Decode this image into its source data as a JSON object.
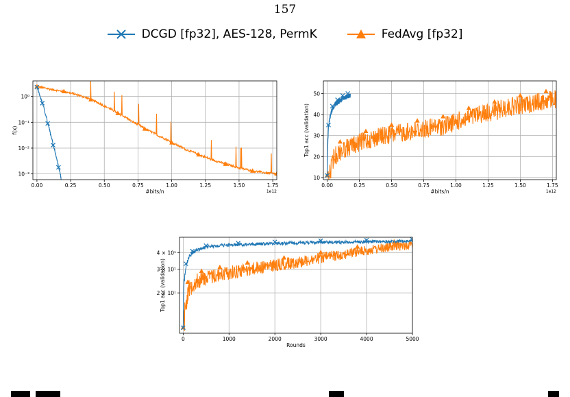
{
  "page": {
    "number": "157"
  },
  "legend": {
    "items": [
      {
        "label": "DCGD [fp32], AES-128, PermK",
        "color": "#1f77b4",
        "marker": "x"
      },
      {
        "label": "FedAvg [fp32]",
        "color": "#ff7f0e",
        "marker": "triangle"
      }
    ]
  },
  "chart_data": [
    {
      "id": "loss",
      "type": "line",
      "xlabel": "#bits/n",
      "ylabel": "f(x)",
      "x_multiplier": "1e12",
      "yscale": "log",
      "xlim": [
        -0.03,
        1.78
      ],
      "ylim": [
        0.0006,
        4.0
      ],
      "xticks": [
        0.0,
        0.25,
        0.5,
        0.75,
        1.0,
        1.25,
        1.5,
        1.75
      ],
      "xtick_labels": [
        "0.00",
        "0.25",
        "0.50",
        "0.75",
        "1.00",
        "1.25",
        "1.50",
        "1.75"
      ],
      "yticks": [
        0.001,
        0.01,
        0.1,
        1
      ],
      "ytick_labels": [
        "10⁻³",
        "10⁻²",
        "10⁻¹",
        "10⁰"
      ],
      "grid": true,
      "series": [
        {
          "name": "DCGD [fp32], AES-128, PermK",
          "color": "#1f77b4",
          "marker": "x",
          "x": [
            0.0,
            0.02,
            0.04,
            0.06,
            0.08,
            0.1,
            0.12,
            0.14,
            0.16,
            0.18
          ],
          "y": [
            2.3,
            1.1,
            0.55,
            0.22,
            0.09,
            0.035,
            0.013,
            0.005,
            0.0018,
            0.0006
          ]
        },
        {
          "name": "FedAvg [fp32]",
          "color": "#ff7f0e",
          "marker": "triangle",
          "x": [
            0.0,
            0.1,
            0.2,
            0.3,
            0.4,
            0.5,
            0.6,
            0.7,
            0.8,
            0.9,
            1.0,
            1.1,
            1.2,
            1.3,
            1.4,
            1.5,
            1.6,
            1.7,
            1.78
          ],
          "y": [
            2.4,
            1.9,
            1.55,
            1.15,
            0.75,
            0.42,
            0.22,
            0.11,
            0.055,
            0.03,
            0.016,
            0.009,
            0.0055,
            0.0035,
            0.0024,
            0.0017,
            0.0013,
            0.0011,
            0.001
          ]
        }
      ]
    },
    {
      "id": "acc-bits",
      "type": "line",
      "xlabel": "#bits/n",
      "ylabel": "Top1 acc (validation)",
      "x_multiplier": "1e12",
      "xlim": [
        -0.03,
        1.78
      ],
      "ylim": [
        9,
        56
      ],
      "xticks": [
        0.0,
        0.25,
        0.5,
        0.75,
        1.0,
        1.25,
        1.5,
        1.75
      ],
      "xtick_labels": [
        "0.00",
        "0.25",
        "0.50",
        "0.75",
        "1.00",
        "1.25",
        "1.50",
        "1.75"
      ],
      "yticks": [
        10,
        20,
        30,
        40,
        50
      ],
      "ytick_labels": [
        "10",
        "20",
        "30",
        "40",
        "50"
      ],
      "grid": true,
      "series": [
        {
          "name": "DCGD [fp32], AES-128, PermK",
          "color": "#1f77b4",
          "marker": "x",
          "x": [
            0.0,
            0.005,
            0.01,
            0.02,
            0.04,
            0.06,
            0.08,
            0.1,
            0.12,
            0.14,
            0.16,
            0.18
          ],
          "y": [
            11,
            28,
            35,
            40,
            44,
            46,
            47,
            48,
            49,
            49.5,
            50,
            50.5
          ]
        },
        {
          "name": "FedAvg [fp32]",
          "color": "#ff7f0e",
          "marker": "triangle",
          "x": [
            0.0,
            0.05,
            0.1,
            0.2,
            0.3,
            0.4,
            0.5,
            0.6,
            0.7,
            0.8,
            0.9,
            1.0,
            1.1,
            1.2,
            1.3,
            1.4,
            1.5,
            1.6,
            1.7,
            1.78
          ],
          "y": [
            11,
            24,
            27,
            30,
            32,
            34,
            35,
            36,
            37,
            38,
            39,
            41,
            43,
            45,
            46,
            48,
            49,
            50,
            51,
            52
          ]
        }
      ]
    },
    {
      "id": "acc-rounds",
      "type": "line",
      "xlabel": "Rounds",
      "ylabel": "Top1 acc (validation)",
      "yscale": "log",
      "xlim": [
        -80,
        5000
      ],
      "ylim": [
        10,
        52
      ],
      "xticks": [
        0,
        1000,
        2000,
        3000,
        4000,
        5000
      ],
      "xtick_labels": [
        "0",
        "1000",
        "2000",
        "3000",
        "4000",
        "5000"
      ],
      "yticks": [
        20,
        30,
        40
      ],
      "ytick_labels": [
        "2 × 10¹",
        "3 × 10¹",
        "4 × 10¹"
      ],
      "grid": true,
      "series": [
        {
          "name": "DCGD [fp32], AES-128, PermK",
          "color": "#1f77b4",
          "marker": "x",
          "x": [
            0,
            20,
            60,
            120,
            200,
            300,
            500,
            800,
            1200,
            1600,
            2000,
            2500,
            3000,
            3500,
            4000,
            4500,
            5000
          ],
          "y": [
            11,
            25,
            33,
            38,
            41,
            43,
            45,
            46.5,
            47,
            47.5,
            48,
            48.5,
            49,
            49,
            49.5,
            49.5,
            50
          ]
        },
        {
          "name": "FedAvg [fp32]",
          "color": "#ff7f0e",
          "marker": "triangle",
          "x": [
            0,
            50,
            100,
            200,
            400,
            600,
            800,
            1000,
            1400,
            1800,
            2200,
            2600,
            3000,
            3400,
            3800,
            4200,
            4600,
            5000
          ],
          "y": [
            11,
            20,
            24,
            27,
            29,
            30,
            31,
            32,
            33.5,
            35,
            36.5,
            38,
            40,
            42,
            44,
            46,
            48,
            49
          ]
        }
      ]
    }
  ]
}
